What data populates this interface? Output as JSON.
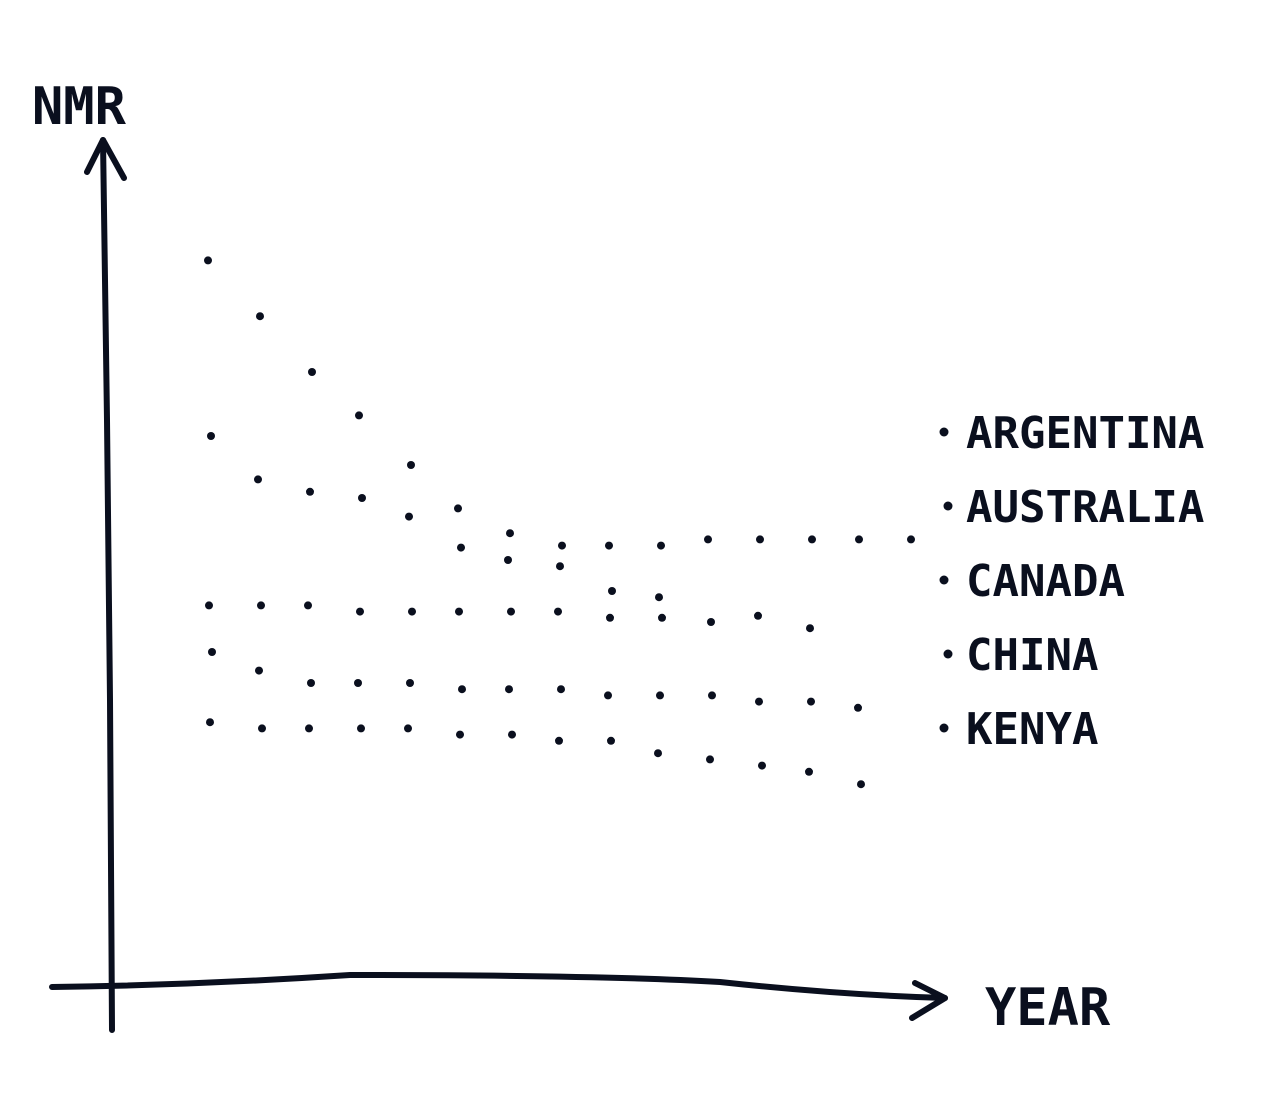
{
  "chart_data": {
    "type": "scatter",
    "xlabel": "YEAR",
    "ylabel": "NMR",
    "grid": false,
    "legend_position": "right",
    "x_ticks": "none",
    "y_ticks": "none",
    "series": [
      {
        "name": "ARGENTINA",
        "x": [
          1,
          2,
          3,
          4,
          5,
          6,
          7,
          8,
          9,
          10,
          11,
          12,
          13,
          14,
          15
        ],
        "y": [
          73,
          64,
          55,
          48,
          40,
          33,
          29,
          27,
          27,
          27,
          28,
          28,
          28,
          28,
          28
        ]
      },
      {
        "name": "AUSTRALIA",
        "x": [
          1,
          2,
          3,
          4,
          5,
          6,
          7,
          8,
          9,
          10,
          11,
          12,
          13
        ],
        "y": [
          45,
          38,
          36,
          35,
          32,
          27,
          25,
          24,
          20,
          19,
          15,
          16,
          14
        ]
      },
      {
        "name": "CANADA",
        "x": [
          1,
          2,
          3,
          4,
          5,
          6,
          7,
          8,
          9,
          10
        ],
        "y": [
          18,
          18,
          18,
          17,
          17,
          17,
          17,
          17,
          16,
          16
        ]
      },
      {
        "name": "CHINA",
        "x": [
          1,
          2,
          3,
          4,
          5,
          6,
          7,
          8,
          9,
          10,
          11,
          12,
          13,
          14
        ],
        "y": [
          10,
          7,
          5,
          5,
          5,
          4,
          4,
          4,
          3,
          3,
          3,
          2,
          2,
          1
        ]
      },
      {
        "name": "KENYA",
        "x": [
          1,
          2,
          3,
          4,
          5,
          6,
          7,
          8,
          9,
          10,
          11,
          12,
          13,
          14
        ],
        "y": [
          -1,
          -2,
          -2,
          -2,
          -2,
          -3,
          -3,
          -4,
          -4,
          -6,
          -7,
          -8,
          -9,
          -11
        ]
      }
    ]
  }
}
